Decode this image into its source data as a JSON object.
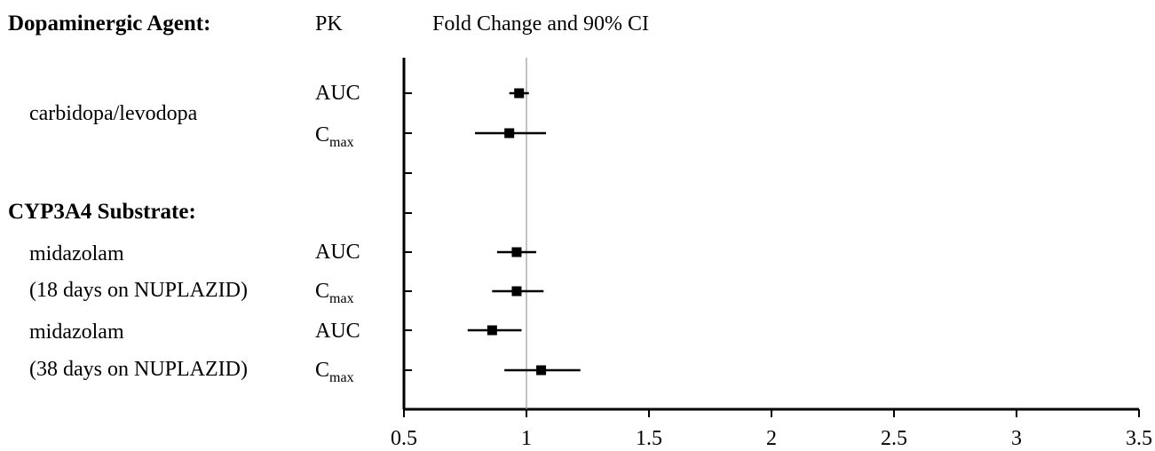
{
  "header": {
    "col1": "Dopaminergic Agent:",
    "col2": "PK",
    "col3": "Fold Change and 90% CI"
  },
  "groups": {
    "cyp3a4": "CYP3A4 Substrate:"
  },
  "drugs": {
    "carbidopa": "carbidopa/levodopa",
    "midaz18_line1": "midazolam",
    "midaz18_line2": "(18 days on NUPLAZID)",
    "midaz38_line1": "midazolam",
    "midaz38_line2": "(38 days on NUPLAZID)"
  },
  "pk": {
    "auc": "AUC",
    "c": "C",
    "max": "max"
  },
  "chart_data": {
    "type": "forest",
    "xlim": [
      0.5,
      3.5
    ],
    "xticks": [
      "0.5",
      "1",
      "1.5",
      "2",
      "2.5",
      "3",
      "3.5"
    ],
    "reference_line": 1,
    "rows": [
      {
        "drug": "carbidopa/levodopa",
        "pk": "AUC",
        "estimate": 0.97,
        "lower": 0.93,
        "upper": 1.01
      },
      {
        "drug": "carbidopa/levodopa",
        "pk": "Cmax",
        "estimate": 0.93,
        "lower": 0.79,
        "upper": 1.08
      },
      {
        "drug": "midazolam (18 days on NUPLAZID)",
        "pk": "AUC",
        "estimate": 0.96,
        "lower": 0.88,
        "upper": 1.04
      },
      {
        "drug": "midazolam (18 days on NUPLAZID)",
        "pk": "Cmax",
        "estimate": 0.96,
        "lower": 0.86,
        "upper": 1.07
      },
      {
        "drug": "midazolam (38 days on NUPLAZID)",
        "pk": "AUC",
        "estimate": 0.86,
        "lower": 0.76,
        "upper": 0.98
      },
      {
        "drug": "midazolam (38 days on NUPLAZID)",
        "pk": "Cmax",
        "estimate": 1.06,
        "lower": 0.91,
        "upper": 1.22
      }
    ]
  }
}
